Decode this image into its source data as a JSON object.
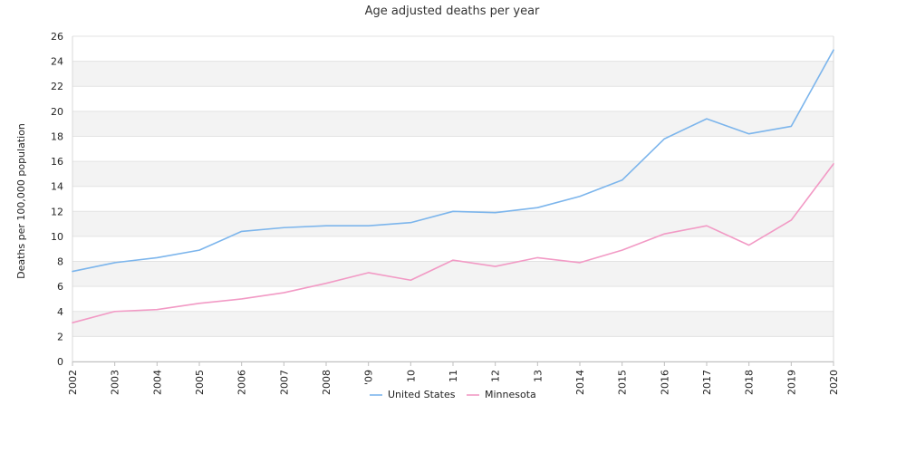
{
  "chart_data": {
    "type": "line",
    "title": "Age adjusted deaths per year",
    "xlabel": "",
    "ylabel": "Deaths per 100,000 population",
    "categories": [
      "2002",
      "2003",
      "2004",
      "2005",
      "2006",
      "2007",
      "2008",
      "2009",
      "2010",
      "2011",
      "2012",
      "2013",
      "2014",
      "2015",
      "2016",
      "2017",
      "2018",
      "2019",
      "2020"
    ],
    "tick_labels": [
      "2002",
      "2003",
      "2004",
      "2005",
      "2006",
      "2007",
      "2008",
      "'09",
      "10",
      "11",
      "12",
      "13",
      "2014",
      "2015",
      "2016",
      "2017",
      "2018",
      "2019",
      "2020"
    ],
    "yticks": [
      "0",
      "2",
      "4",
      "6",
      "8",
      "10",
      "12",
      "14",
      "16",
      "18",
      "20",
      "22",
      "24",
      "26"
    ],
    "ylim": [
      0,
      26
    ],
    "grid": true,
    "legend_position": "bottom-center",
    "series": [
      {
        "name": "United States",
        "color": "#7cb5ec",
        "values": [
          7.2,
          7.9,
          8.3,
          8.9,
          10.4,
          10.7,
          10.85,
          10.85,
          11.1,
          12.0,
          11.9,
          12.3,
          13.2,
          14.5,
          17.8,
          19.4,
          18.2,
          18.8,
          24.9
        ]
      },
      {
        "name": "Minnesota",
        "color": "#f29ac5",
        "values": [
          3.1,
          4.0,
          4.15,
          4.65,
          5.0,
          5.5,
          6.25,
          7.1,
          6.5,
          8.1,
          7.6,
          8.3,
          7.9,
          8.9,
          10.2,
          10.85,
          9.3,
          11.3,
          15.8
        ]
      }
    ]
  }
}
